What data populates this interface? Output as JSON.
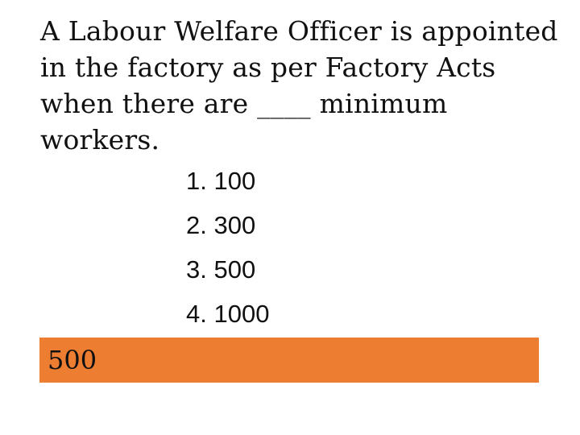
{
  "question": {
    "lines": [
      "A Labour Welfare Officer is appointed",
      "in the factory as per Factory Acts",
      "when there are ____ minimum",
      "workers."
    ]
  },
  "options": [
    "1. 100",
    "2. 300",
    "3. 500",
    "4. 1000"
  ],
  "answer": {
    "text": "500",
    "background_color": "#ed7d31"
  }
}
